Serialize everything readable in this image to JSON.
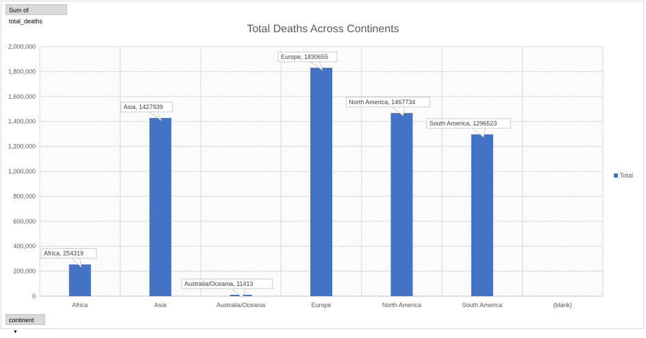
{
  "pivot": {
    "value_field_label": "Sum of total_deaths",
    "axis_field_label": "continent",
    "axis_field_arrow": "▼"
  },
  "chart_data": {
    "type": "bar",
    "title": "Total Deaths Across Continents",
    "xlabel": "",
    "ylabel": "",
    "categories": [
      "Africa",
      "Asia",
      "Australia/Oceania",
      "Europe",
      "North America",
      "South America",
      "(blank)"
    ],
    "series": [
      {
        "name": "Total",
        "color": "#4472c4",
        "values": [
          254319,
          1427939,
          11413,
          1830655,
          1467734,
          1296523,
          null
        ]
      }
    ],
    "data_labels": [
      "Africa, 254319",
      "Asia, 1427939",
      "Australia/Oceania, 11413",
      "Europe, 1830655",
      "North America, 1467734",
      "South America, 1296523",
      ""
    ],
    "y_ticks": [
      "0",
      "200,000",
      "400,000",
      "600,000",
      "800,000",
      "1,000,000",
      "1,200,000",
      "1,400,000",
      "1,600,000",
      "1,800,000",
      "2,000,000"
    ],
    "ylim": [
      0,
      2000000
    ],
    "grid": true,
    "legend_position": "right"
  }
}
